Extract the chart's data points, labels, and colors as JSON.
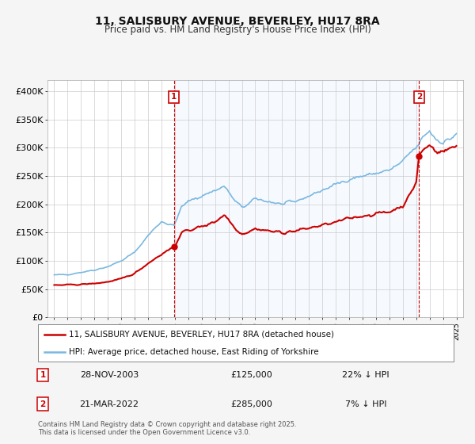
{
  "title": "11, SALISBURY AVENUE, BEVERLEY, HU17 8RA",
  "subtitle": "Price paid vs. HM Land Registry's House Price Index (HPI)",
  "legend_line1": "11, SALISBURY AVENUE, BEVERLEY, HU17 8RA (detached house)",
  "legend_line2": "HPI: Average price, detached house, East Riding of Yorkshire",
  "sale1_date": "28-NOV-2003",
  "sale1_price": "£125,000",
  "sale1_hpi": "22% ↓ HPI",
  "sale2_date": "21-MAR-2022",
  "sale2_price": "£285,000",
  "sale2_hpi": "7% ↓ HPI",
  "footnote": "Contains HM Land Registry data © Crown copyright and database right 2025.\nThis data is licensed under the Open Government Licence v3.0.",
  "hpi_color": "#7ab8e0",
  "price_color": "#cc0000",
  "sale_vline_color": "#cc0000",
  "background_color": "#f5f5f5",
  "plot_bg_color": "#ffffff",
  "shade_color": "#ddeeff",
  "ylim": [
    0,
    420000
  ],
  "yticks": [
    0,
    50000,
    100000,
    150000,
    200000,
    250000,
    300000,
    350000,
    400000
  ],
  "ytick_labels": [
    "£0",
    "£50K",
    "£100K",
    "£150K",
    "£200K",
    "£250K",
    "£300K",
    "£350K",
    "£400K"
  ],
  "sale1_x": 2003.92,
  "sale1_y": 125000,
  "sale2_x": 2022.21,
  "sale2_y": 285000,
  "xlim_left": 1994.5,
  "xlim_right": 2025.5
}
